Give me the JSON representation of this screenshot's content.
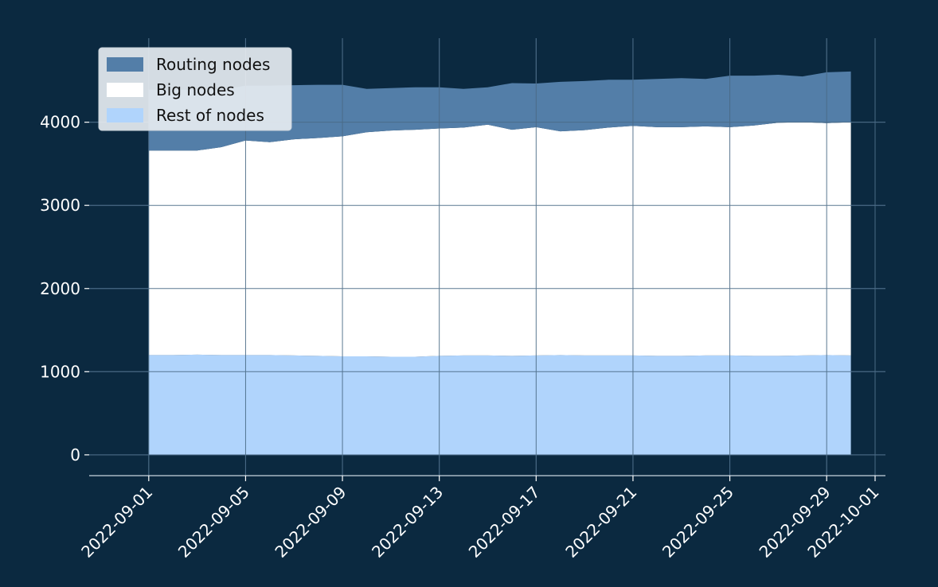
{
  "chart_data": {
    "type": "area",
    "stacked": true,
    "x": [
      "2022-09-01",
      "2022-09-02",
      "2022-09-03",
      "2022-09-04",
      "2022-09-05",
      "2022-09-06",
      "2022-09-07",
      "2022-09-08",
      "2022-09-09",
      "2022-09-10",
      "2022-09-11",
      "2022-09-12",
      "2022-09-13",
      "2022-09-14",
      "2022-09-15",
      "2022-09-16",
      "2022-09-17",
      "2022-09-18",
      "2022-09-19",
      "2022-09-20",
      "2022-09-21",
      "2022-09-22",
      "2022-09-23",
      "2022-09-24",
      "2022-09-25",
      "2022-09-26",
      "2022-09-27",
      "2022-09-28",
      "2022-09-29",
      "2022-09-30"
    ],
    "series": [
      {
        "name": "Rest of nodes",
        "color": "#b0d4fc",
        "values": [
          1200,
          1200,
          1205,
          1200,
          1200,
          1200,
          1195,
          1190,
          1185,
          1185,
          1180,
          1180,
          1190,
          1195,
          1195,
          1190,
          1195,
          1200,
          1195,
          1195,
          1195,
          1190,
          1190,
          1195,
          1195,
          1190,
          1190,
          1195,
          1200,
          1195
        ]
      },
      {
        "name": "Big nodes",
        "color": "#ffffff",
        "values": [
          2460,
          2460,
          2455,
          2500,
          2580,
          2560,
          2600,
          2620,
          2645,
          2695,
          2720,
          2730,
          2735,
          2740,
          2775,
          2720,
          2745,
          2690,
          2710,
          2740,
          2760,
          2750,
          2750,
          2755,
          2745,
          2770,
          2805,
          2805,
          2790,
          2805
        ]
      },
      {
        "name": "Routing nodes",
        "color": "#537ea8",
        "values": [
          730,
          730,
          730,
          690,
          660,
          680,
          650,
          640,
          620,
          520,
          510,
          510,
          495,
          465,
          450,
          560,
          525,
          595,
          590,
          575,
          555,
          580,
          590,
          570,
          620,
          600,
          575,
          550,
          610,
          610
        ]
      }
    ],
    "x_ticks": [
      "2022-09-01",
      "2022-09-05",
      "2022-09-09",
      "2022-09-13",
      "2022-09-17",
      "2022-09-21",
      "2022-09-25",
      "2022-09-29",
      "2022-10-01"
    ],
    "y_ticks": [
      "0",
      "1000",
      "2000",
      "3000",
      "4000"
    ],
    "xlim": [
      "2022-08-30",
      "2022-10-01"
    ],
    "ylim": [
      -250,
      4800
    ],
    "title": "",
    "xlabel": "",
    "ylabel": "",
    "grid": true,
    "legend_position": "top-left",
    "background": "#0b2940",
    "grid_color": "#4a6a85"
  }
}
